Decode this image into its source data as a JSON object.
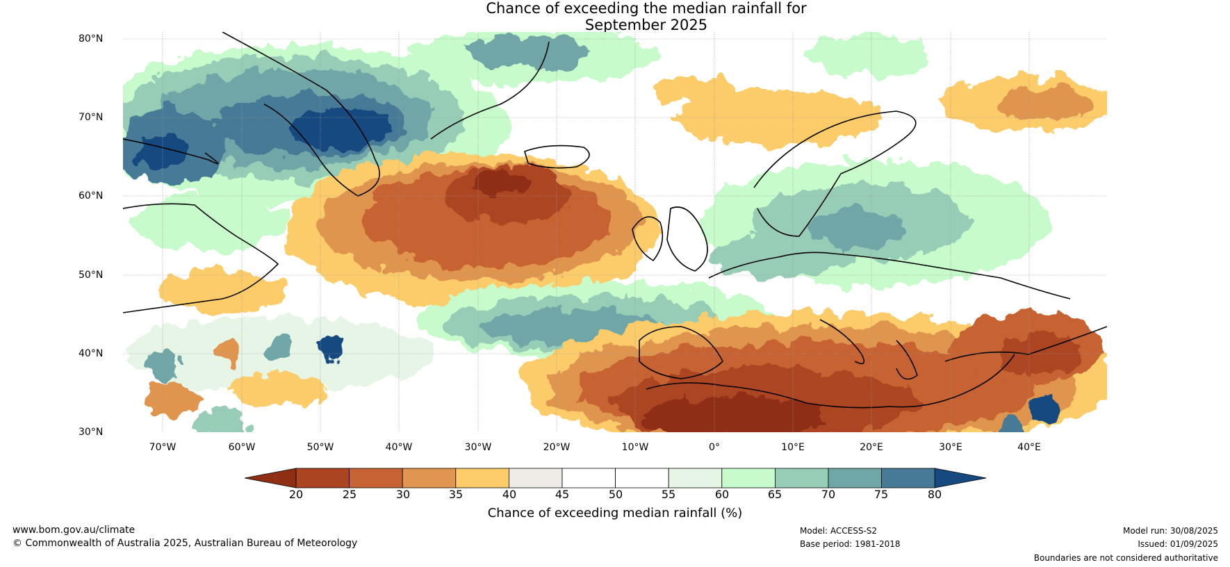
{
  "title": {
    "line1": "Chance of exceeding the median rainfall for",
    "line2": "September 2025"
  },
  "map": {
    "lat_labels": [
      "80°N",
      "70°N",
      "60°N",
      "50°N",
      "40°N",
      "30°N"
    ],
    "lon_labels": [
      "70°W",
      "60°W",
      "50°W",
      "40°W",
      "30°W",
      "20°W",
      "10°W",
      "0°",
      "10°E",
      "20°E",
      "30°E",
      "40°E"
    ]
  },
  "colorbar": {
    "ticks": [
      "20",
      "25",
      "30",
      "35",
      "40",
      "45",
      "50",
      "55",
      "60",
      "65",
      "70",
      "75",
      "80"
    ],
    "label": "Chance of exceeding median rainfall (%)",
    "colors": {
      "lt20": "#8e2f14",
      "20-25": "#ab4421",
      "25-30": "#c76233",
      "30-35": "#e09550",
      "35-40": "#fdcc6a",
      "40-45": "#efebe7",
      "45-50": "#ffffff",
      "50-55": "#ffffff",
      "55-60": "#e6f5e6",
      "60-65": "#c7fbcb",
      "65-70": "#97cdb7",
      "70-75": "#6fa6a7",
      "75-80": "#467a97",
      "gt80": "#164980"
    }
  },
  "footer": {
    "website": "www.bom.gov.au/climate",
    "copyright": "© Commonwealth of Australia 2025, Australian Bureau of Meteorology",
    "model": "Model: ACCESS-S2",
    "base_period": "Base period: 1981-2018",
    "model_run": "Model run: 30/08/2025",
    "issued": "Issued: 01/09/2025",
    "disclaimer": "Boundaries are not considered authoritative"
  }
}
